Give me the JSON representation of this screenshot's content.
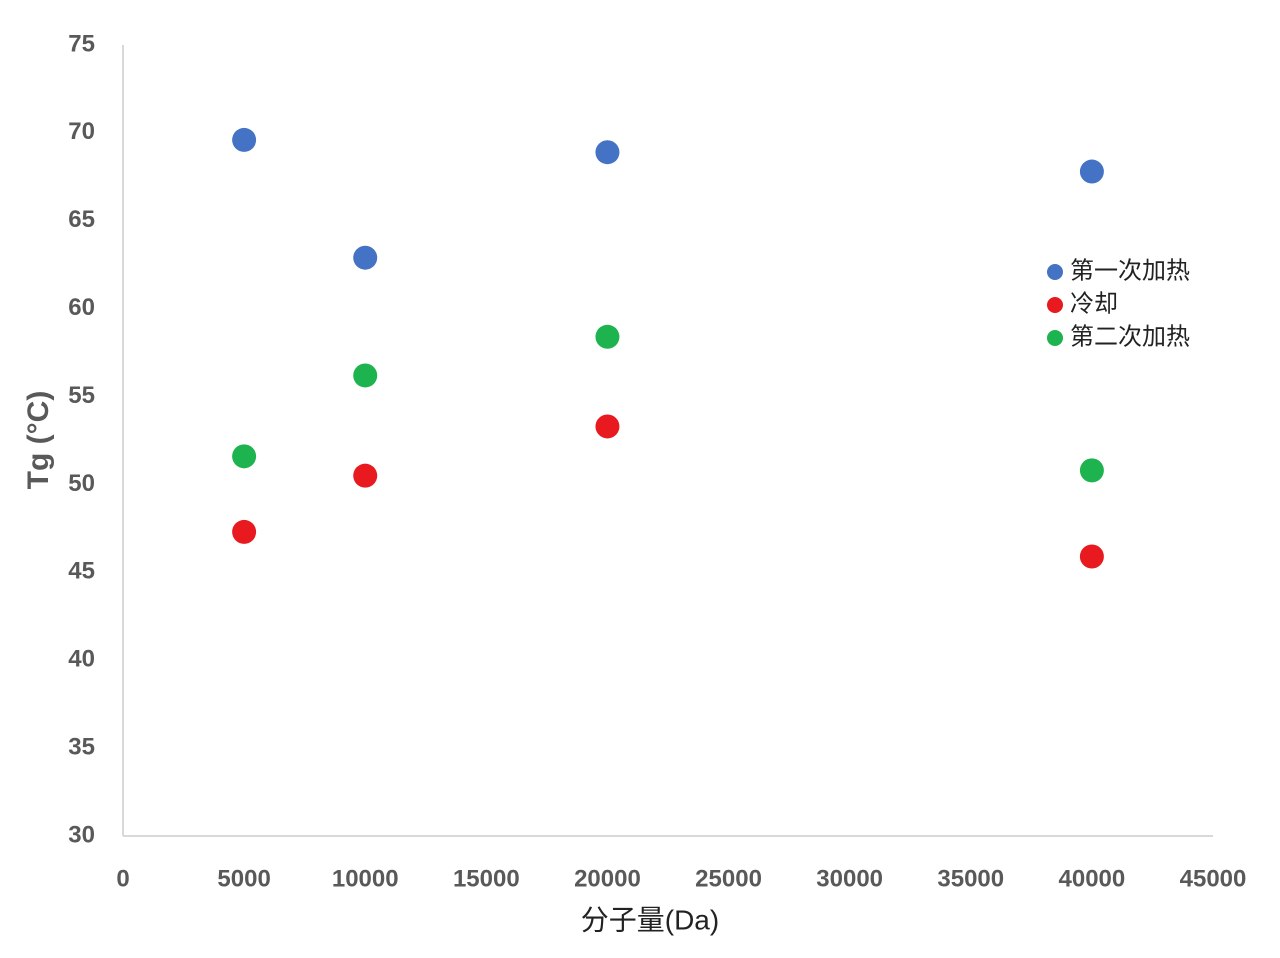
{
  "chart_data": {
    "type": "scatter",
    "x_label": "分子量(Da)",
    "y_label": "Tg (°C)",
    "x": [
      5000,
      10000,
      20000,
      40000
    ],
    "series": [
      {
        "name": "第一次加热",
        "color": "#4472c4",
        "values": [
          69.6,
          62.9,
          68.9,
          67.8
        ]
      },
      {
        "name": "冷却",
        "color": "#e8191f",
        "values": [
          47.3,
          50.5,
          53.3,
          45.9
        ]
      },
      {
        "name": "第二次加热",
        "color": "#1db34f",
        "values": [
          51.6,
          56.2,
          58.4,
          50.8
        ]
      }
    ],
    "xlim": [
      0,
      45000
    ],
    "xticks": [
      0,
      5000,
      10000,
      15000,
      20000,
      25000,
      30000,
      35000,
      40000,
      45000
    ],
    "ylim": [
      30,
      75
    ],
    "yticks": [
      30,
      35,
      40,
      45,
      50,
      55,
      60,
      65,
      70,
      75
    ],
    "grid": false,
    "legend": "right"
  }
}
